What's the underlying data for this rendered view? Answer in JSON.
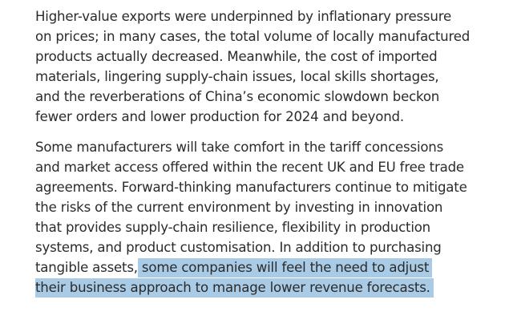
{
  "document": {
    "paragraphs": [
      {
        "lines": [
          "Higher-value exports were underpinned by inflationary pressure",
          "on prices; in many cases, the total volume of locally manufactured",
          "products actually decreased. Meanwhile, the cost of imported",
          "materials, lingering supply-chain issues, local skills shortages,",
          "and the reverberations of China’s economic slowdown beckon",
          "fewer orders and lower production for 2024 and beyond."
        ]
      },
      {
        "lines": [
          "Some manufacturers will take comfort in the tariff concessions",
          "and market access offered within the recent UK and EU free trade",
          "agreements. Forward-thinking manufacturers continue to mitigate",
          "the risks of the current environment by investing in innovation",
          "that provides supply-chain resilience, flexibility in production",
          "systems, and product customisation. In addition to purchasing"
        ],
        "line7_plain": "tangible assets,",
        "line7_highlight": " some companies will feel the need to adjust",
        "line8_highlight": "their business approach to manage lower revenue forecasts."
      }
    ],
    "highlight_color": "#a9cbe6"
  }
}
